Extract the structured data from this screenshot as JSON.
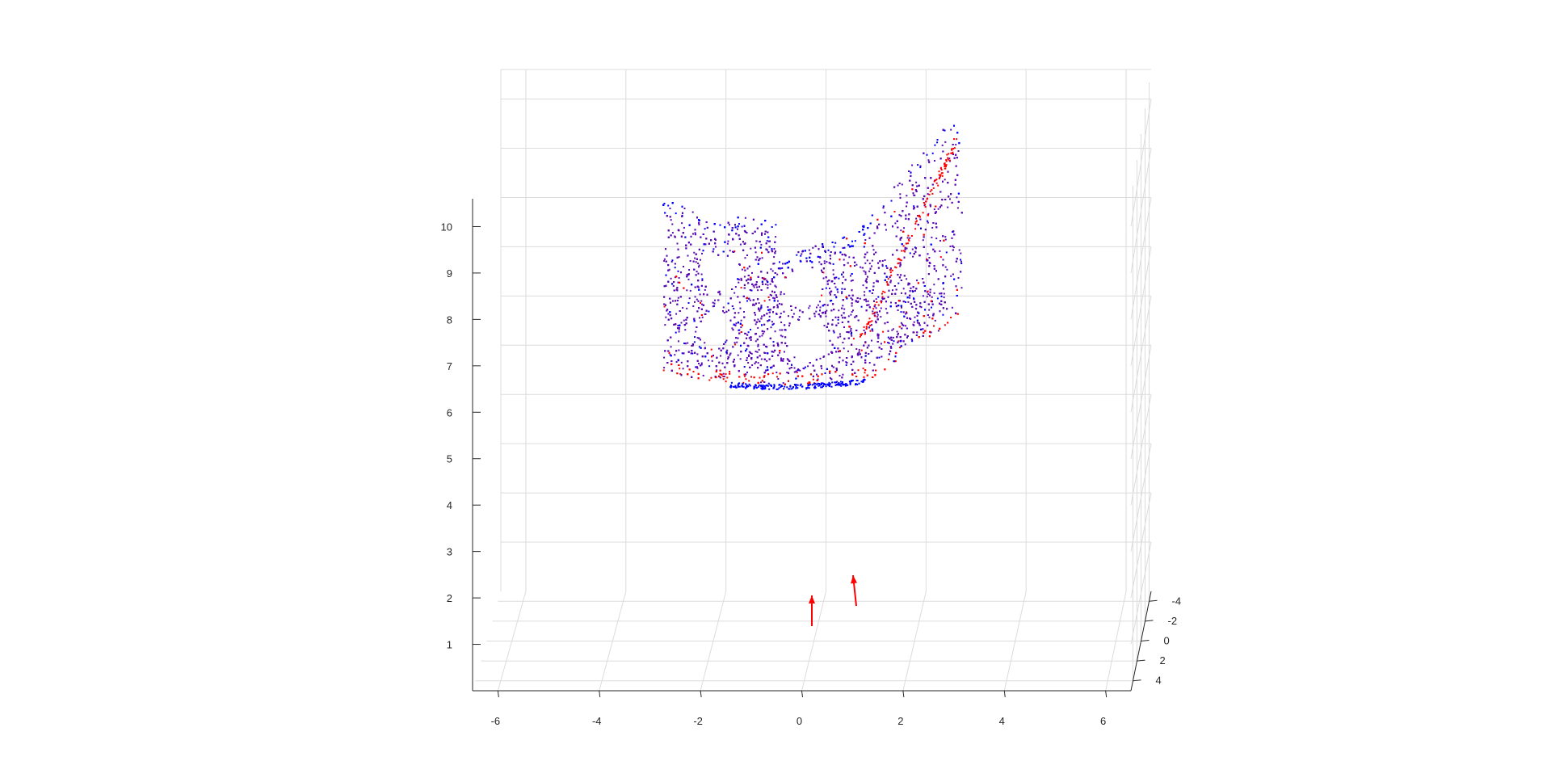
{
  "chart_data": {
    "type": "scatter",
    "title": "",
    "xlabel": "",
    "ylabel": "",
    "zlabel": "",
    "grid": true,
    "view": "3d",
    "axes": {
      "x": {
        "lim": [
          -6,
          6
        ],
        "ticks": [
          "-6",
          "-4",
          "-2",
          "0",
          "2",
          "4",
          "6"
        ]
      },
      "z": {
        "lim": [
          0,
          10
        ],
        "ticks": [
          "1",
          "2",
          "3",
          "4",
          "5",
          "6",
          "7",
          "8",
          "9",
          "10"
        ]
      },
      "y": {
        "lim": [
          -4,
          4
        ],
        "ticks": [
          "-4",
          "-2",
          "0",
          "2",
          "4"
        ]
      }
    },
    "colors": {
      "blue_points": "#0000ff",
      "purple_points": "#5a0ab4",
      "red_points": "#ff0000",
      "camera_arrows": "#ff0000",
      "grid": "#dcdcdc",
      "axis": "#262626"
    },
    "series": [
      {
        "kind": "point-cloud",
        "shape": "curved surface with four circular holes",
        "x_range": [
          -2.7,
          3.2
        ],
        "z_range": [
          6.4,
          10.3
        ],
        "colors": [
          "blue",
          "purple",
          "red"
        ],
        "approx_points": 4500
      },
      {
        "kind": "camera-arrows",
        "count": 2,
        "x": [
          0.3,
          1.1
        ],
        "z": [
          1.5,
          2.0
        ]
      }
    ]
  }
}
